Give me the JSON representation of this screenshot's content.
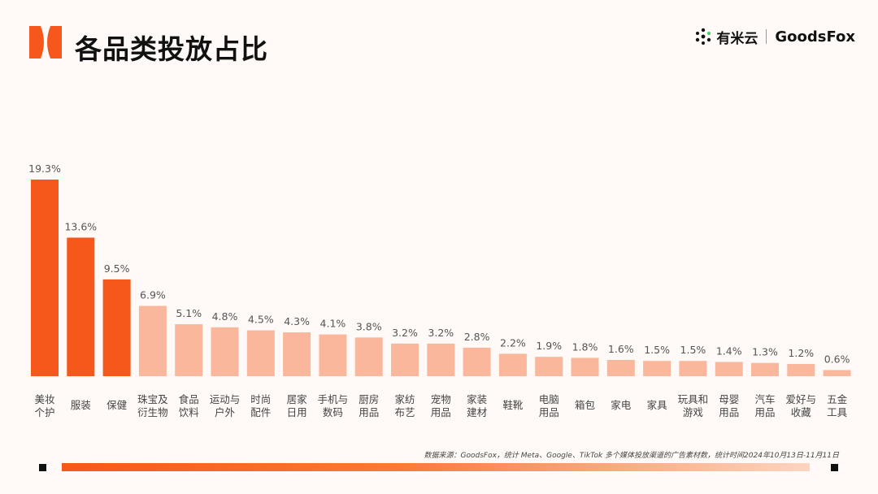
{
  "header": {
    "title": "各品类投放占比",
    "brand_primary": "有米云",
    "brand_secondary": "GoodsFox"
  },
  "colors": {
    "highlight": "#f5581a",
    "normal": "#fab79b",
    "background": "#fffaf7"
  },
  "chart_data": {
    "type": "bar",
    "title": "各品类投放占比",
    "xlabel": "",
    "ylabel": "",
    "unit": "%",
    "ylim": [
      0,
      20
    ],
    "grid": false,
    "highlight_count": 3,
    "categories": [
      [
        "美妆",
        "个护"
      ],
      [
        "服装"
      ],
      [
        "保健"
      ],
      [
        "珠宝及",
        "衍生物"
      ],
      [
        "食品",
        "饮料"
      ],
      [
        "运动与",
        "户外"
      ],
      [
        "时尚",
        "配件"
      ],
      [
        "居家",
        "日用"
      ],
      [
        "手机与",
        "数码"
      ],
      [
        "厨房",
        "用品"
      ],
      [
        "家纺",
        "布艺"
      ],
      [
        "宠物",
        "用品"
      ],
      [
        "家装",
        "建材"
      ],
      [
        "鞋靴"
      ],
      [
        "电脑",
        "用品"
      ],
      [
        "箱包"
      ],
      [
        "家电"
      ],
      [
        "家具"
      ],
      [
        "玩具和",
        "游戏"
      ],
      [
        "母婴",
        "用品"
      ],
      [
        "汽车",
        "用品"
      ],
      [
        "爱好与",
        "收藏"
      ],
      [
        "五金",
        "工具"
      ]
    ],
    "values": [
      19.3,
      13.6,
      9.5,
      6.9,
      5.1,
      4.8,
      4.5,
      4.3,
      4.1,
      3.8,
      3.2,
      3.2,
      2.8,
      2.2,
      1.9,
      1.8,
      1.6,
      1.5,
      1.5,
      1.4,
      1.3,
      1.2,
      0.6
    ],
    "labels": [
      "19.3%",
      "13.6%",
      "9.5%",
      "6.9%",
      "5.1%",
      "4.8%",
      "4.5%",
      "4.3%",
      "4.1%",
      "3.8%",
      "3.2%",
      "3.2%",
      "2.8%",
      "2.2%",
      "1.9%",
      "1.8%",
      "1.6%",
      "1.5%",
      "1.5%",
      "1.4%",
      "1.3%",
      "1.2%",
      "0.6%"
    ]
  },
  "footer": {
    "source": "数据来源：GoodsFox，统计 Meta、Google、TikTok 多个媒体投放渠道的广告素材数，统计时间2024年10月13日-11月11日"
  }
}
